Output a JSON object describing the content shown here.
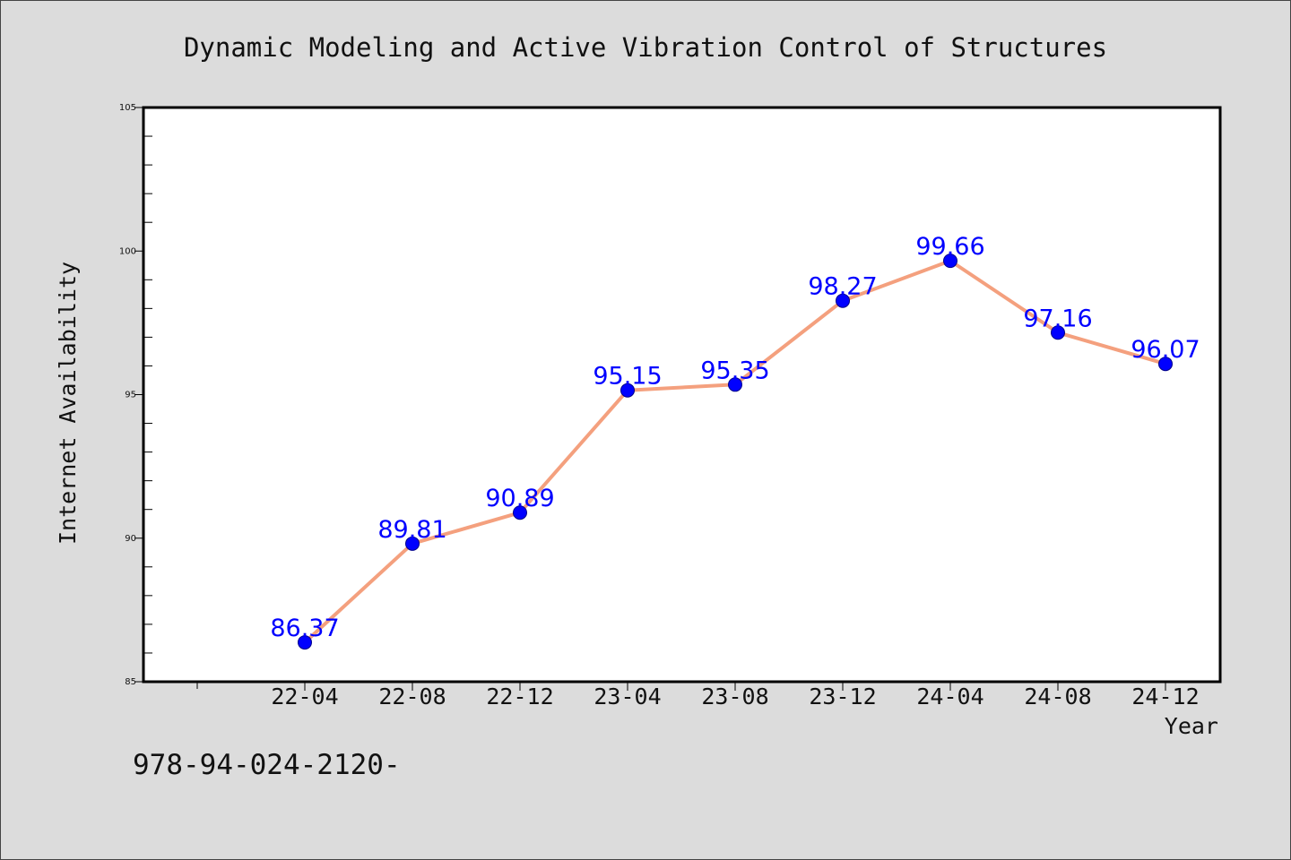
{
  "chart_data": {
    "type": "line",
    "title": "Dynamic Modeling and Active Vibration Control of Structures",
    "xlabel": "Year",
    "ylabel": "Internet Availability",
    "categories": [
      "22-04",
      "22-08",
      "22-12",
      "23-04",
      "23-08",
      "23-12",
      "24-04",
      "24-08",
      "24-12"
    ],
    "series": [
      {
        "values": [
          86.37,
          89.81,
          90.89,
          95.15,
          95.35,
          98.27,
          99.66,
          97.16,
          96.07
        ]
      }
    ],
    "data_labels": [
      "86.37",
      "89.81",
      "90.89",
      "95.15",
      "95.35",
      "98.27",
      "99.66",
      "97.16",
      "96.07"
    ],
    "ylim": [
      85,
      105
    ],
    "yticks": [
      "85",
      "90",
      "95",
      "100",
      "105"
    ],
    "grid": false,
    "colors": {
      "line": "#f4a07e",
      "marker": "#0000ff",
      "label": "#0000ff",
      "background": "#dcdcdc",
      "plot": "#ffffff"
    }
  },
  "footer_text": "978-94-024-2120-"
}
